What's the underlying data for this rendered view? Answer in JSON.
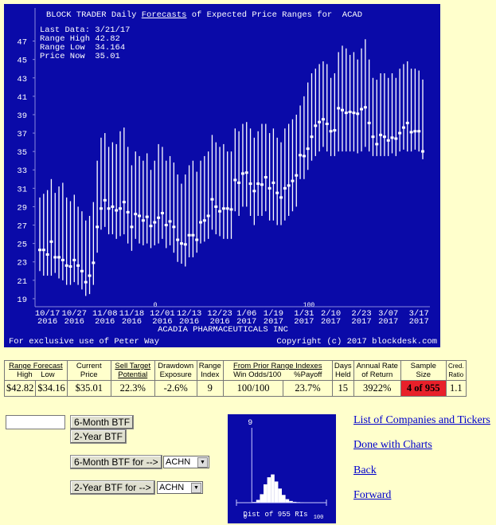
{
  "chart_data": {
    "type": "range",
    "title": [
      "BLOCK TRADER Daily ",
      "Forecasts",
      " of Expected Price Ranges for  ACAD"
    ],
    "info": [
      "Last Data: 3/21/17",
      "Range High 42.82",
      "Range Low  34.164",
      "Price Now  35.01"
    ],
    "company": "ACADIA PHARMACEUTICALS INC",
    "footer_left": "For exclusive use of Peter Way",
    "footer_right": "Copyright (c) 2017 blockdesk.com",
    "annotations": [
      "0",
      "100"
    ],
    "categories": [
      null,
      null,
      "10/17",
      null,
      null,
      null,
      null,
      null,
      null,
      "10/27",
      null,
      null,
      null,
      null,
      null,
      null,
      null,
      "11/08",
      null,
      null,
      null,
      null,
      null,
      null,
      "11/18",
      null,
      null,
      null,
      null,
      null,
      null,
      null,
      "12/01",
      null,
      null,
      null,
      null,
      null,
      null,
      "12/13",
      null,
      null,
      null,
      null,
      null,
      null,
      null,
      "12/23",
      null,
      null,
      null,
      null,
      null,
      null,
      "1/06",
      null,
      null,
      null,
      null,
      null,
      null,
      "1/19",
      null,
      null,
      null,
      null,
      null,
      null,
      null,
      "1/31",
      null,
      null,
      null,
      null,
      null,
      null,
      "2/10",
      null,
      null,
      null,
      null,
      null,
      null,
      null,
      "2/23",
      null,
      null,
      null,
      null,
      null,
      null,
      "3/07",
      null,
      null,
      null,
      null,
      null,
      null,
      null,
      "3/17",
      null
    ],
    "years": [
      null,
      null,
      "2016",
      null,
      null,
      null,
      null,
      null,
      null,
      "2016",
      null,
      null,
      null,
      null,
      null,
      null,
      null,
      "2016",
      null,
      null,
      null,
      null,
      null,
      null,
      "2016",
      null,
      null,
      null,
      null,
      null,
      null,
      null,
      "2016",
      null,
      null,
      null,
      null,
      null,
      null,
      "2016",
      null,
      null,
      null,
      null,
      null,
      null,
      null,
      "2016",
      null,
      null,
      null,
      null,
      null,
      null,
      "2017",
      null,
      null,
      null,
      null,
      null,
      null,
      "2017",
      null,
      null,
      null,
      null,
      null,
      null,
      null,
      "2017",
      null,
      null,
      null,
      null,
      null,
      null,
      "2017",
      null,
      null,
      null,
      null,
      null,
      null,
      null,
      "2017",
      null,
      null,
      null,
      null,
      null,
      null,
      "2017",
      null,
      null,
      null,
      null,
      null,
      null,
      null,
      "2017",
      null
    ],
    "high": [
      30.0,
      30.4,
      30.8,
      32.0,
      30.5,
      31.2,
      31.6,
      30.0,
      29.6,
      30.3,
      29.0,
      28.5,
      27.5,
      28.0,
      29.5,
      34.0,
      36.5,
      37.0,
      35.5,
      36.0,
      35.8,
      37.2,
      37.6,
      35.5,
      33.5,
      35.0,
      34.5,
      34.0,
      34.8,
      33.0,
      34.0,
      35.8,
      35.5,
      34.0,
      34.5,
      33.8,
      32.5,
      31.5,
      32.5,
      33.5,
      34.0,
      32.8,
      34.0,
      34.5,
      35.0,
      36.8,
      36.0,
      35.5,
      35.8,
      35.0,
      35.0,
      37.5,
      37.2,
      38.0,
      38.2,
      37.5,
      36.5,
      37.2,
      38.0,
      38.0,
      37.0,
      37.5,
      36.5,
      36.0,
      37.5,
      38.0,
      38.5,
      39.0,
      40.0,
      41.0,
      42.5,
      43.5,
      44.0,
      44.5,
      44.8,
      44.5,
      43.0,
      43.5,
      45.8,
      46.5,
      46.2,
      45.5,
      45.8,
      45.0,
      46.2,
      47.2,
      45.0,
      43.0,
      42.8,
      43.5,
      43.5,
      43.0,
      43.5,
      43.0,
      44.0,
      44.5,
      44.8,
      44.0,
      44.0,
      43.8,
      42.82
    ],
    "low": [
      22.0,
      21.5,
      21.5,
      21.5,
      21.8,
      21.2,
      21.0,
      20.5,
      20.5,
      20.8,
      20.5,
      20.0,
      19.3,
      19.5,
      20.5,
      24.0,
      26.5,
      26.8,
      26.0,
      26.0,
      25.5,
      25.8,
      26.0,
      25.0,
      24.2,
      25.5,
      25.0,
      24.8,
      25.0,
      24.5,
      24.8,
      25.0,
      25.5,
      24.5,
      24.8,
      24.0,
      23.0,
      22.8,
      22.5,
      23.5,
      23.5,
      24.0,
      25.0,
      25.2,
      25.5,
      26.5,
      26.0,
      25.8,
      25.5,
      25.5,
      25.5,
      28.5,
      28.0,
      29.0,
      29.0,
      28.0,
      27.0,
      28.0,
      28.0,
      28.5,
      27.5,
      27.5,
      27.0,
      27.0,
      27.5,
      28.0,
      28.5,
      29.0,
      32.0,
      32.0,
      33.0,
      34.0,
      34.5,
      35.0,
      35.5,
      35.0,
      34.5,
      34.5,
      35.0,
      35.0,
      35.0,
      35.0,
      35.0,
      34.8,
      35.0,
      35.5,
      35.0,
      34.5,
      34.5,
      34.5,
      34.5,
      34.5,
      34.8,
      34.5,
      35.0,
      35.2,
      35.0,
      35.0,
      35.2,
      35.0,
      34.16
    ],
    "price": [
      24.3,
      24.3,
      23.8,
      25.2,
      23.5,
      23.5,
      23.2,
      22.6,
      22.5,
      23.2,
      22.6,
      22.0,
      20.8,
      21.5,
      22.9,
      26.8,
      28.8,
      29.7,
      28.8,
      29.0,
      28.6,
      28.8,
      29.5,
      28.4,
      26.8,
      28.2,
      28.0,
      27.5,
      27.9,
      26.9,
      27.3,
      27.8,
      28.3,
      27.0,
      27.4,
      26.8,
      25.4,
      25.0,
      24.9,
      25.9,
      25.9,
      25.4,
      27.3,
      27.5,
      28.0,
      29.8,
      29.0,
      28.5,
      28.8,
      28.8,
      28.7,
      31.9,
      31.6,
      32.6,
      32.7,
      31.5,
      30.7,
      31.5,
      31.4,
      32.2,
      31.0,
      31.6,
      30.5,
      30.0,
      31.0,
      31.3,
      31.8,
      32.4,
      34.6,
      34.5,
      35.3,
      36.6,
      37.8,
      38.2,
      38.5,
      38.0,
      37.2,
      37.3,
      39.7,
      39.5,
      39.2,
      39.3,
      39.2,
      39.1,
      39.6,
      39.8,
      38.1,
      36.6,
      35.8,
      36.8,
      36.6,
      36.2,
      36.5,
      36.4,
      37.0,
      37.6,
      38.1,
      37.1,
      37.2,
      37.2,
      35.01
    ],
    "color": "#ffffff",
    "background": "#0a0aa8",
    "ylim": [
      18.3,
      50.6
    ],
    "yticks": [
      19,
      21,
      23,
      25,
      27,
      29,
      31,
      33,
      35,
      37,
      39,
      41,
      43,
      45,
      47
    ]
  },
  "table": {
    "header1": [
      "Range Forecast",
      "Current Price",
      "Sell Target Potential",
      "Drawdown Exposure",
      "Range Index",
      "From Prior Range Indexes",
      "Days Held",
      "Annual Rate of Return",
      "Sample Size",
      "Cred. Ratio"
    ],
    "header2": [
      "High",
      "Low",
      "Win Odds/100",
      "%Payoff"
    ],
    "row": [
      "$42.82",
      "$34.16",
      "$35.01",
      "22.3%",
      "-2.6%",
      "9",
      "100/100",
      "23.7%",
      "15",
      "3922%",
      "4 of 955",
      "1.1"
    ]
  },
  "controls": {
    "button_6m": "6-Month BTF",
    "button_2y": "2-Year BTF",
    "button_6m_for": "6-Month BTF for -->",
    "button_2y_for": "2-Year BTF for -->",
    "select_6m": "ACHN",
    "select_2y": "ACHN"
  },
  "distribution": {
    "type": "histogram",
    "marker": 9,
    "caption": "Dist of 955 RIs",
    "bins": [
      0,
      5,
      10,
      15,
      20,
      25,
      30,
      35,
      40,
      45,
      50,
      55,
      60,
      65,
      70,
      75,
      80,
      85,
      90,
      95,
      100
    ],
    "counts": [
      0,
      2,
      5,
      20,
      60,
      130,
      180,
      200,
      150,
      100,
      55,
      25,
      12,
      6,
      4,
      3,
      2,
      1,
      0,
      0
    ],
    "xlim": [
      0,
      100
    ],
    "xticks": [
      0,
      100
    ],
    "ylim": [
      0,
      220
    ],
    "color": "#ffffff"
  },
  "links": [
    "List of Companies and Tickers",
    "Done with Charts",
    "Back",
    "Forward"
  ]
}
